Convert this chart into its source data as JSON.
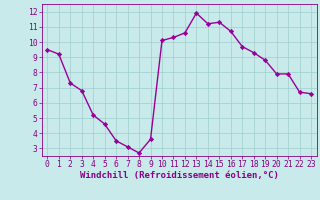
{
  "x": [
    0,
    1,
    2,
    3,
    4,
    5,
    6,
    7,
    8,
    9,
    10,
    11,
    12,
    13,
    14,
    15,
    16,
    17,
    18,
    19,
    20,
    21,
    22,
    23
  ],
  "y": [
    9.5,
    9.2,
    7.3,
    6.8,
    5.2,
    4.6,
    3.5,
    3.1,
    2.7,
    3.6,
    10.1,
    10.3,
    10.6,
    11.9,
    11.2,
    11.3,
    10.7,
    9.7,
    9.3,
    8.8,
    7.9,
    7.9,
    6.7,
    6.6
  ],
  "line_color": "#990099",
  "marker": "D",
  "markersize": 2.2,
  "linewidth": 1.0,
  "bg_color": "#c8eaea",
  "grid_color": "#a0cccc",
  "xlabel": "Windchill (Refroidissement éolien,°C)",
  "xlabel_color": "#880088",
  "xlabel_fontsize": 6.5,
  "tick_color": "#880088",
  "tick_fontsize": 5.8,
  "xlim": [
    -0.5,
    23.5
  ],
  "ylim": [
    2.5,
    12.5
  ],
  "yticks": [
    3,
    4,
    5,
    6,
    7,
    8,
    9,
    10,
    11,
    12
  ],
  "xticks": [
    0,
    1,
    2,
    3,
    4,
    5,
    6,
    7,
    8,
    9,
    10,
    11,
    12,
    13,
    14,
    15,
    16,
    17,
    18,
    19,
    20,
    21,
    22,
    23
  ],
  "spine_color": "#880088"
}
